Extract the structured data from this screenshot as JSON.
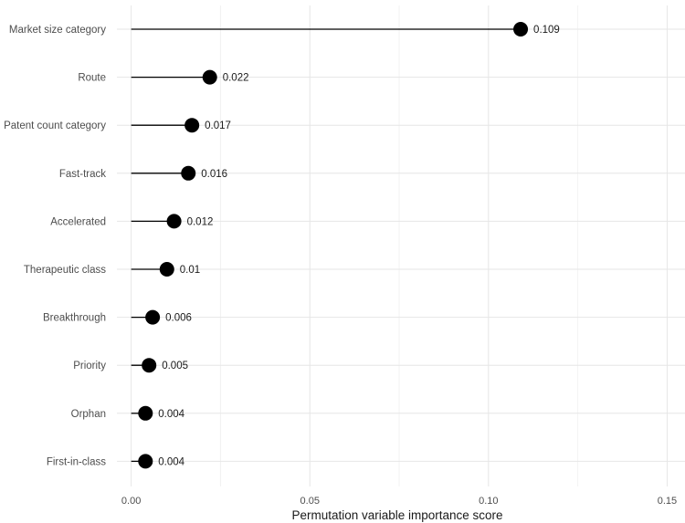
{
  "chart_data": {
    "type": "lollipop",
    "xlabel": "Permutation variable importance score",
    "ylabel": "",
    "title": "",
    "xlim": [
      -0.004,
      0.155
    ],
    "x_ticks": [
      0.0,
      0.05,
      0.1,
      0.15
    ],
    "x_tick_labels": [
      "0.00",
      "0.05",
      "0.10",
      "0.15"
    ],
    "grid": true,
    "legend": "none",
    "categories": [
      "Market size category",
      "Route",
      "Patent count category",
      "Fast-track",
      "Accelerated",
      "Therapeutic class",
      "Breakthrough",
      "Priority",
      "Orphan",
      "First-in-class"
    ],
    "values": [
      0.109,
      0.022,
      0.017,
      0.016,
      0.012,
      0.01,
      0.006,
      0.005,
      0.004,
      0.004
    ],
    "value_labels": [
      "0.109",
      "0.022",
      "0.017",
      "0.016",
      "0.012",
      "0.01",
      "0.006",
      "0.005",
      "0.004",
      "0.004"
    ],
    "colors": {
      "point": "#000000",
      "stem": "#000000",
      "grid": "#e6e6e6",
      "text": "#4d4d4d"
    }
  }
}
